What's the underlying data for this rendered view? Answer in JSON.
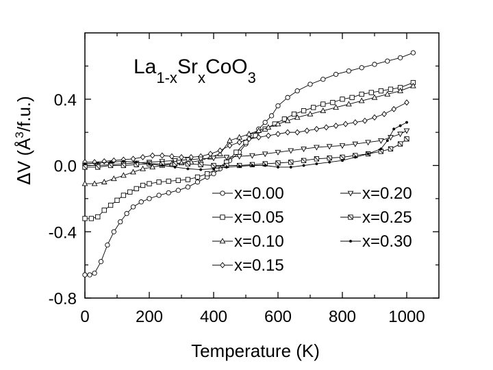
{
  "chart_data": {
    "type": "line",
    "title": {
      "parts": [
        "La",
        "1-x",
        "Sr",
        "x",
        "Co",
        "O",
        "3"
      ]
    },
    "xlabel": "Temperature (K)",
    "ylabel": {
      "delta": "Δ",
      "pre": "V (Å",
      "sup": "3",
      "post": "/f.u.)"
    },
    "xlim": [
      0,
      1100
    ],
    "ylim": [
      -0.8,
      0.8
    ],
    "x_ticks": [
      0,
      200,
      400,
      600,
      800,
      1000
    ],
    "x_tick_labels": [
      "0",
      "200",
      "400",
      "600",
      "800",
      "1000"
    ],
    "y_ticks": [
      -0.8,
      -0.4,
      0.0,
      0.4
    ],
    "y_tick_labels": [
      "-0.8",
      "-0.4",
      "0.0",
      "0.4"
    ],
    "series": [
      {
        "name": "x=0.00",
        "marker": "circle",
        "x": [
          0,
          15,
          30,
          50,
          70,
          90,
          110,
          130,
          150,
          175,
          200,
          230,
          260,
          290,
          320,
          350,
          380,
          400,
          420,
          450,
          480,
          500,
          520,
          540,
          560,
          580,
          600,
          630,
          660,
          700,
          740,
          780,
          820,
          860,
          900,
          940,
          980,
          1020
        ],
        "y": [
          -0.66,
          -0.66,
          -0.65,
          -0.58,
          -0.48,
          -0.4,
          -0.34,
          -0.29,
          -0.25,
          -0.22,
          -0.2,
          -0.18,
          -0.165,
          -0.15,
          -0.13,
          -0.1,
          -0.07,
          -0.05,
          -0.02,
          0.03,
          0.08,
          0.13,
          0.18,
          0.22,
          0.26,
          0.3,
          0.36,
          0.41,
          0.45,
          0.49,
          0.52,
          0.55,
          0.57,
          0.59,
          0.61,
          0.63,
          0.65,
          0.68
        ]
      },
      {
        "name": "x=0.05",
        "marker": "square",
        "x": [
          0,
          20,
          40,
          60,
          80,
          100,
          120,
          140,
          160,
          180,
          200,
          230,
          260,
          290,
          320,
          350,
          380,
          410,
          440,
          470,
          500,
          530,
          560,
          590,
          620,
          650,
          680,
          710,
          740,
          770,
          800,
          830,
          860,
          890,
          920,
          950,
          980,
          1020
        ],
        "y": [
          -0.32,
          -0.32,
          -0.31,
          -0.27,
          -0.24,
          -0.21,
          -0.18,
          -0.16,
          -0.14,
          -0.12,
          -0.11,
          -0.1,
          -0.095,
          -0.09,
          -0.085,
          -0.07,
          -0.05,
          -0.02,
          0.02,
          0.08,
          0.14,
          0.18,
          0.22,
          0.25,
          0.28,
          0.31,
          0.33,
          0.35,
          0.37,
          0.38,
          0.4,
          0.41,
          0.43,
          0.44,
          0.45,
          0.46,
          0.47,
          0.5
        ]
      },
      {
        "name": "x=0.10",
        "marker": "triangle-up",
        "x": [
          0,
          30,
          60,
          90,
          120,
          150,
          180,
          210,
          240,
          270,
          300,
          330,
          360,
          390,
          420,
          450,
          480,
          510,
          540,
          570,
          600,
          630,
          660,
          700,
          740,
          780,
          820,
          860,
          900,
          940,
          980,
          1020
        ],
        "y": [
          -0.11,
          -0.11,
          -0.1,
          -0.08,
          -0.06,
          -0.04,
          -0.02,
          -0.01,
          0.0,
          0.01,
          0.015,
          0.02,
          0.03,
          0.05,
          0.07,
          0.15,
          0.17,
          0.19,
          0.21,
          0.23,
          0.25,
          0.27,
          0.29,
          0.31,
          0.33,
          0.35,
          0.37,
          0.39,
          0.41,
          0.43,
          0.45,
          0.48
        ]
      },
      {
        "name": "x=0.15",
        "marker": "diamond",
        "x": [
          0,
          30,
          60,
          90,
          120,
          150,
          180,
          210,
          240,
          270,
          300,
          330,
          360,
          390,
          420,
          450,
          480,
          510,
          540,
          570,
          600,
          630,
          660,
          690,
          720,
          750,
          780,
          810,
          840,
          870,
          900,
          930,
          960,
          1000
        ],
        "y": [
          0.02,
          0.02,
          0.025,
          0.03,
          0.035,
          0.04,
          0.05,
          0.06,
          0.06,
          0.055,
          0.05,
          0.05,
          0.055,
          0.07,
          0.09,
          0.12,
          0.14,
          0.16,
          0.17,
          0.18,
          0.19,
          0.2,
          0.2,
          0.21,
          0.22,
          0.23,
          0.24,
          0.25,
          0.26,
          0.27,
          0.29,
          0.31,
          0.34,
          0.38
        ]
      },
      {
        "name": "x=0.20",
        "marker": "triangle-down",
        "x": [
          0,
          40,
          80,
          120,
          160,
          200,
          240,
          280,
          320,
          360,
          400,
          440,
          480,
          520,
          560,
          600,
          640,
          680,
          720,
          760,
          800,
          840,
          880,
          920,
          950,
          980,
          1000
        ],
        "y": [
          0.0,
          0.0,
          0.005,
          0.01,
          0.015,
          0.02,
          0.025,
          0.03,
          0.035,
          0.04,
          0.045,
          0.05,
          0.055,
          0.06,
          0.07,
          0.08,
          0.09,
          0.1,
          0.11,
          0.115,
          0.12,
          0.13,
          0.14,
          0.15,
          0.17,
          0.19,
          0.21
        ]
      },
      {
        "name": "x=0.25",
        "marker": "hourglass",
        "x": [
          0,
          40,
          80,
          120,
          160,
          200,
          240,
          280,
          320,
          360,
          400,
          440,
          480,
          520,
          560,
          600,
          640,
          680,
          720,
          760,
          800,
          840,
          880,
          920,
          950,
          980,
          1000
        ],
        "y": [
          -0.01,
          -0.01,
          0.0,
          0.0,
          0.005,
          0.01,
          0.01,
          0.01,
          0.01,
          0.005,
          0.0,
          0.0,
          0.0,
          0.005,
          0.01,
          0.015,
          0.02,
          0.03,
          0.04,
          0.045,
          0.05,
          0.06,
          0.07,
          0.085,
          0.1,
          0.13,
          0.16
        ]
      },
      {
        "name": "x=0.30",
        "marker": "dot",
        "x": [
          0,
          40,
          80,
          120,
          160,
          200,
          240,
          280,
          320,
          360,
          400,
          440,
          480,
          520,
          560,
          600,
          640,
          680,
          720,
          760,
          800,
          840,
          880,
          920,
          940,
          960,
          980,
          1000
        ],
        "y": [
          0.01,
          0.015,
          0.02,
          0.025,
          0.02,
          0.01,
          0.0,
          -0.01,
          -0.02,
          -0.025,
          -0.02,
          -0.01,
          -0.005,
          0.0,
          0.0,
          -0.01,
          -0.01,
          0.0,
          0.01,
          0.02,
          0.03,
          0.05,
          0.07,
          0.1,
          0.15,
          0.22,
          0.24,
          0.26
        ]
      }
    ]
  }
}
